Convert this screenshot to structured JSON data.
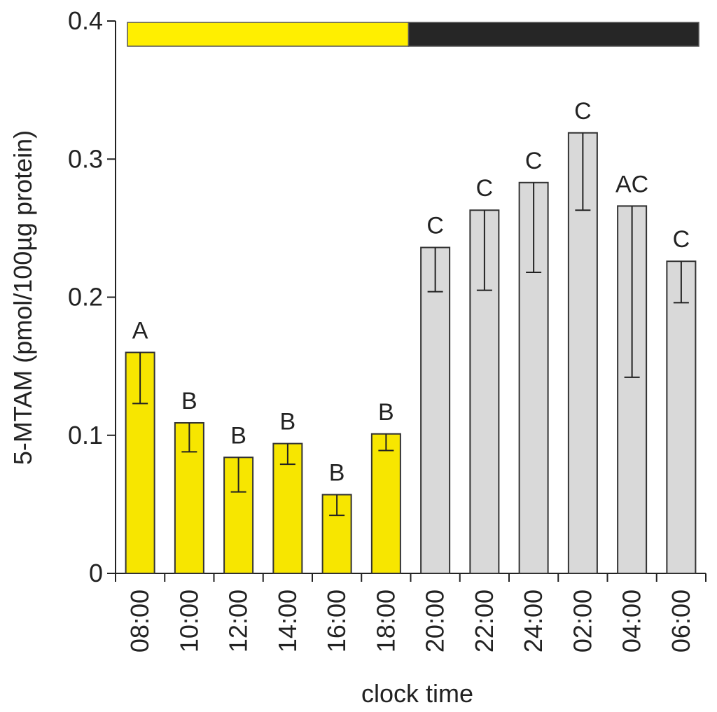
{
  "chart_data": {
    "type": "bar",
    "title": "",
    "xlabel": "clock time",
    "ylabel": "5-MTAM (pmol/100µg protein)",
    "ylim": [
      0,
      0.4
    ],
    "yticks": [
      0,
      0.1,
      0.2,
      0.3,
      0.4
    ],
    "ytick_labels": [
      "0",
      "0.1",
      "0.2",
      "0.3",
      "0.4"
    ],
    "categories": [
      "08:00",
      "10:00",
      "12:00",
      "14:00",
      "16:00",
      "18:00",
      "20:00",
      "22:00",
      "24:00",
      "02:00",
      "04:00",
      "06:00"
    ],
    "values": [
      0.16,
      0.109,
      0.084,
      0.094,
      0.057,
      0.101,
      0.236,
      0.263,
      0.283,
      0.319,
      0.266,
      0.226
    ],
    "error_lower": [
      0.123,
      0.088,
      0.059,
      0.079,
      0.042,
      0.089,
      0.204,
      0.205,
      0.218,
      0.263,
      0.142,
      0.196
    ],
    "letters": [
      "A",
      "B",
      "B",
      "B",
      "B",
      "B",
      "C",
      "C",
      "C",
      "C",
      "AC",
      "C"
    ],
    "phases": [
      "light",
      "light",
      "light",
      "light",
      "light",
      "light",
      "dark",
      "dark",
      "dark",
      "dark",
      "dark",
      "dark"
    ],
    "phase_colors": {
      "light": "#f7e600",
      "dark": "#d9d9d9"
    },
    "light_dark_bar": {
      "light_color": "#ffef00",
      "dark_color": "#262626",
      "light_until_index": 6
    }
  }
}
